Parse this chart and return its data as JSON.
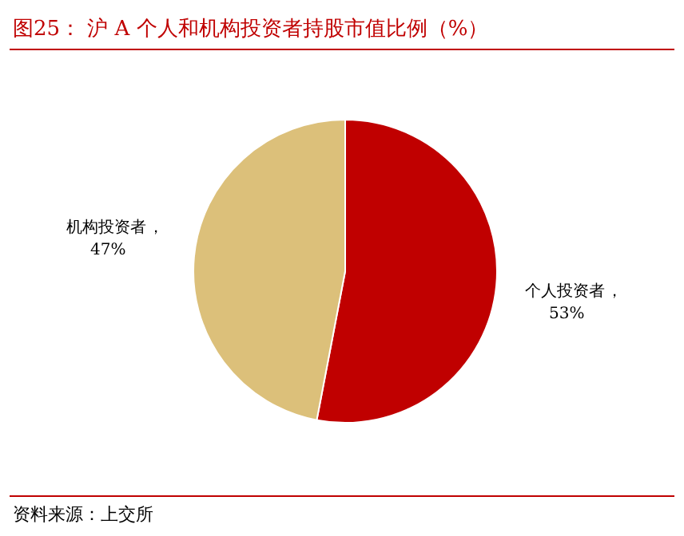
{
  "chart_data": {
    "type": "pie",
    "title": "图25：  沪 A 个人和机构投资者持股市值比例（%）",
    "categories": [
      "个人投资者",
      "机构投资者"
    ],
    "values": [
      53,
      47
    ],
    "colors": [
      "#c00000",
      "#dcc07a"
    ],
    "value_labels": [
      "，53%",
      "，47%"
    ],
    "annotations": [
      "资料来源：上交所"
    ]
  }
}
